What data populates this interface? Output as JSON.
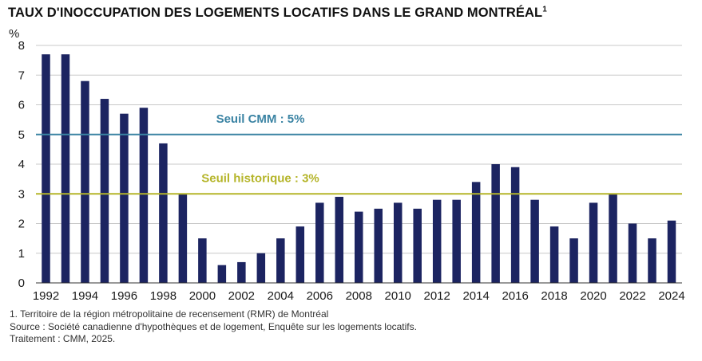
{
  "colors": {
    "bar": "#1c2461",
    "grid": "#c8c8c8",
    "axis": "#333333",
    "threshold_cmm": "#3a83a3",
    "threshold_hist": "#b5b52a"
  },
  "header": {
    "title": "TAUX D'INOCCUPATION DES LOGEMENTS LOCATIFS DANS LE GRAND MONTRÉAL",
    "title_note": "1"
  },
  "footer": {
    "notes": [
      "1. Territoire de la région métropolitaine de recensement (RMR) de Montréal",
      "Source : Société canadienne d'hypothèques et de logement, Enquête sur les logements locatifs.",
      "Traitement : CMM, 2025."
    ]
  },
  "chart_data": {
    "type": "bar",
    "ylabel": "%",
    "ylim": [
      0,
      8
    ],
    "yticks": [
      0,
      1,
      2,
      3,
      4,
      5,
      6,
      7,
      8
    ],
    "grid": true,
    "categories": [
      1992,
      1993,
      1994,
      1995,
      1996,
      1997,
      1998,
      1999,
      2000,
      2001,
      2002,
      2003,
      2004,
      2005,
      2006,
      2007,
      2008,
      2009,
      2010,
      2011,
      2012,
      2013,
      2014,
      2015,
      2016,
      2017,
      2018,
      2019,
      2020,
      2021,
      2022,
      2023,
      2024
    ],
    "xtick_labels": [
      "1992",
      "1994",
      "1996",
      "1998",
      "2000",
      "2002",
      "2004",
      "2006",
      "2008",
      "2010",
      "2012",
      "2014",
      "2016",
      "2018",
      "2020",
      "2022",
      "2024"
    ],
    "values": [
      7.7,
      7.7,
      6.8,
      6.2,
      5.7,
      5.9,
      4.7,
      3.0,
      1.5,
      0.6,
      0.7,
      1.0,
      1.5,
      1.9,
      2.7,
      2.9,
      2.4,
      2.5,
      2.7,
      2.5,
      2.8,
      2.8,
      3.4,
      4.0,
      3.9,
      2.8,
      1.9,
      1.5,
      2.7,
      3.0,
      2.0,
      1.5,
      2.1
    ],
    "reference_lines": [
      {
        "label": "Seuil CMM : 5%",
        "value": 5
      },
      {
        "label": "Seuil historique : 3%",
        "value": 3
      }
    ]
  }
}
